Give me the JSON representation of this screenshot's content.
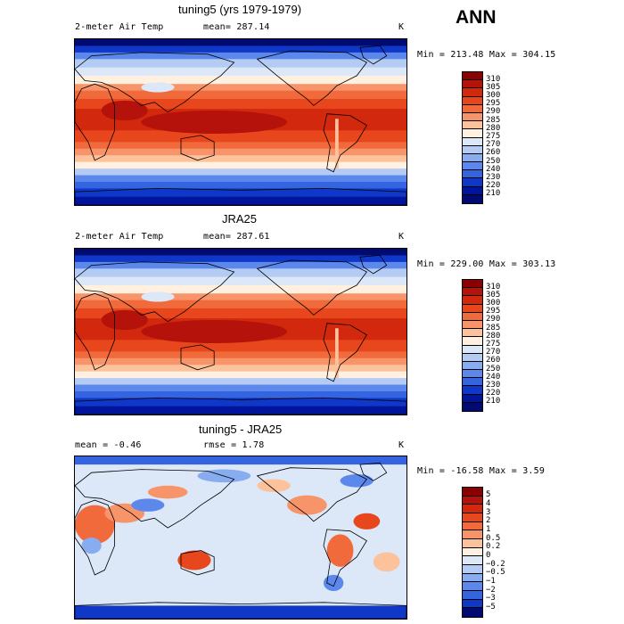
{
  "page_title": "ANN",
  "panels": [
    {
      "title": "tuning5 (yrs 1979-1979)",
      "left_label": "2-meter Air Temp",
      "center_label": "mean= 287.14",
      "units": "K",
      "minmax": "Min = 213.48 Max = 304.15",
      "field": "abs"
    },
    {
      "title": "JRA25",
      "left_label": "2-meter Air Temp",
      "center_label": "mean= 287.61",
      "units": "K",
      "minmax": "Min = 229.00 Max = 303.13",
      "field": "abs"
    },
    {
      "title": "tuning5 - JRA25",
      "left_label": "mean =   -0.46",
      "center_label": "rmse =    1.78",
      "units": "K",
      "minmax": "Min = -16.58 Max =    3.59",
      "field": "diff"
    }
  ],
  "colorbars": {
    "abs": {
      "labels": [
        "310",
        "305",
        "300",
        "295",
        "290",
        "285",
        "280",
        "275",
        "270",
        "260",
        "250",
        "240",
        "230",
        "220",
        "210"
      ],
      "colors": [
        "#8b0000",
        "#b4120a",
        "#d2280e",
        "#e8461c",
        "#f06a3c",
        "#f8946a",
        "#fcc29c",
        "#fff0e0",
        "#dce8f8",
        "#b4ccf4",
        "#88acf0",
        "#5c88ec",
        "#3464e0",
        "#1038c8",
        "#00149c",
        "#000a70"
      ]
    },
    "diff": {
      "labels": [
        "5",
        "4",
        "3",
        "2",
        "1",
        "0.5",
        "0.2",
        "0",
        "−0.2",
        "−0.5",
        "−1",
        "−2",
        "−3",
        "−5"
      ],
      "colors": [
        "#8b0000",
        "#b4120a",
        "#d2280e",
        "#e8461c",
        "#f06a3c",
        "#f8946a",
        "#fcc29c",
        "#fff0e0",
        "#dce8f8",
        "#b4ccf4",
        "#88acf0",
        "#5c88ec",
        "#3464e0",
        "#1038c8",
        "#000a70"
      ]
    }
  },
  "map_colors": {
    "ocean_warm_core": "#c83214",
    "land_outline": "#000000"
  }
}
